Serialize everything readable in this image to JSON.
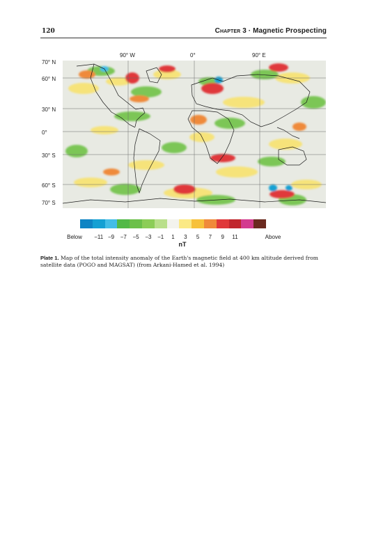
{
  "header": {
    "page_number": "120",
    "chapter_label": "Chapter 3",
    "separator": "·",
    "chapter_title": "Magnetic Prospecting"
  },
  "map": {
    "lon_labels": [
      "90° W",
      "0°",
      "90° E"
    ],
    "lat_labels": [
      "70° N",
      "60° N",
      "30° N",
      "0°",
      "30° S",
      "60° S",
      "70° S"
    ]
  },
  "colorbar": {
    "colors": [
      "#0e84c4",
      "#14a0d3",
      "#43bde6",
      "#52b947",
      "#6cc04a",
      "#8ccd57",
      "#b9df8a",
      "#f3f3ed",
      "#fbe985",
      "#f7c13a",
      "#f08a3a",
      "#e0383a",
      "#c1272d",
      "#d33b8f",
      "#6b2a1f"
    ],
    "labels": [
      "Below",
      "-11",
      "-9",
      "-7",
      "-5",
      "-3",
      "-1",
      "1",
      "3",
      "5",
      "7",
      "9",
      "11",
      "Above"
    ],
    "unit": "nT"
  },
  "caption": {
    "label": "Plate 1.",
    "text": "Map of the total intensity anomaly of the Earth's magnetic field at 400 km altitude derived from satellite data (POGO and MAGSAT) (from Arkani-Hamed et al. 1994)"
  }
}
